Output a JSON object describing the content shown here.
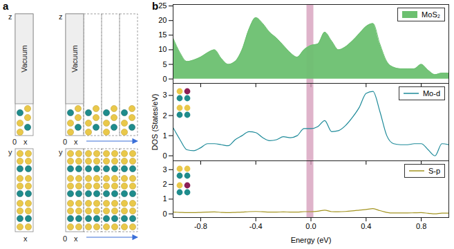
{
  "panel_labels": [
    "a",
    "b"
  ],
  "diagram": {
    "side_views": [
      {
        "vertical_axis": "z",
        "horizontal_axis": "x",
        "origin": "0",
        "region": "Vacuum"
      },
      {
        "vertical_axis": "z",
        "horizontal_axis": "x",
        "origin": "0",
        "region": "Vacuum"
      }
    ],
    "top_views": [
      {
        "vertical_axis": "y",
        "horizontal_axis": "x"
      },
      {
        "vertical_axis": "y",
        "horizontal_axis": "x",
        "origin": "0"
      }
    ]
  },
  "chart_data": [
    {
      "type": "line",
      "x": [
        -1.0,
        -0.95,
        -0.9,
        -0.85,
        -0.8,
        -0.75,
        -0.7,
        -0.65,
        -0.6,
        -0.55,
        -0.5,
        -0.45,
        -0.4,
        -0.35,
        -0.3,
        -0.25,
        -0.2,
        -0.15,
        -0.1,
        -0.05,
        0.0,
        0.05,
        0.1,
        0.15,
        0.2,
        0.25,
        0.3,
        0.35,
        0.4,
        0.45,
        0.5,
        0.55,
        0.6,
        0.65,
        0.7,
        0.75,
        0.8,
        0.85,
        0.9,
        0.95,
        1.0
      ],
      "series": [
        {
          "name": "MoS₂",
          "type": "area",
          "color": "#6cc070",
          "values": [
            14,
            9,
            6,
            6.5,
            7.5,
            9,
            10,
            7,
            5,
            6,
            10,
            17,
            21,
            19,
            16,
            14,
            11.5,
            9,
            7.5,
            10,
            11.5,
            12,
            16,
            13,
            10,
            11,
            13,
            15.5,
            18,
            19,
            12,
            6,
            4,
            3.5,
            3.5,
            3.5,
            5,
            3,
            1.5,
            2,
            2
          ]
        }
      ],
      "xlim": [
        -1.0,
        1.0
      ],
      "xticks": [
        -0.8,
        -0.4,
        {
          "value": 0,
          "label": "0.0"
        },
        0.4,
        0.8
      ],
      "ylim": [
        -1.5,
        25.5
      ],
      "yticks": [
        0,
        5,
        10,
        15,
        20,
        25
      ],
      "tick_labels": "y",
      "legend": "top-right",
      "shaded_range": {
        "x": [
          -0.03,
          0.02
        ],
        "color": "#d49ab8"
      }
    },
    {
      "type": "line",
      "ylabel": "DOS (States/eV)",
      "x": [
        -1.0,
        -0.95,
        -0.9,
        -0.85,
        -0.8,
        -0.75,
        -0.7,
        -0.65,
        -0.6,
        -0.55,
        -0.5,
        -0.45,
        -0.4,
        -0.35,
        -0.3,
        -0.25,
        -0.2,
        -0.15,
        -0.1,
        -0.05,
        0.0,
        0.05,
        0.1,
        0.15,
        0.2,
        0.25,
        0.3,
        0.35,
        0.4,
        0.45,
        0.5,
        0.55,
        0.6,
        0.65,
        0.7,
        0.75,
        0.8,
        0.85,
        0.9,
        0.95,
        1.0
      ],
      "series": [
        {
          "name": "Mo-d",
          "type": "line",
          "color": "#1d8a99",
          "values": [
            1.4,
            0.8,
            0.3,
            0.25,
            0.4,
            0.6,
            0.6,
            0.55,
            0.5,
            0.8,
            1.0,
            1.2,
            1.15,
            0.9,
            0.75,
            0.8,
            0.95,
            0.9,
            1.0,
            1.35,
            1.35,
            1.45,
            1.75,
            1.2,
            1.25,
            1.5,
            1.9,
            2.4,
            3.1,
            3.2,
            2.2,
            1.0,
            0.6,
            0.55,
            0.55,
            0.6,
            0.6,
            0.3,
            0.0,
            0.6,
            0.55
          ]
        }
      ],
      "xlim": [
        -1.0,
        1.0
      ],
      "xticks": [
        -0.8,
        -0.4,
        {
          "value": 0,
          "label": "0.0"
        },
        0.4,
        0.8
      ],
      "ylim": [
        -0.25,
        3.6
      ],
      "yticks": [
        0,
        1,
        2,
        3
      ],
      "tick_labels": "y",
      "legend": "top-right",
      "shaded_range": {
        "x": [
          -0.03,
          0.02
        ],
        "color": "#d49ab8"
      }
    },
    {
      "type": "line",
      "xlabel": "Energy (eV)",
      "x": [
        -1.0,
        -0.95,
        -0.9,
        -0.85,
        -0.8,
        -0.75,
        -0.7,
        -0.65,
        -0.6,
        -0.55,
        -0.5,
        -0.45,
        -0.4,
        -0.35,
        -0.3,
        -0.25,
        -0.2,
        -0.15,
        -0.1,
        -0.05,
        0.0,
        0.05,
        0.1,
        0.15,
        0.2,
        0.25,
        0.3,
        0.35,
        0.4,
        0.45,
        0.5,
        0.55,
        0.6,
        0.65,
        0.7,
        0.75,
        0.8,
        0.85,
        0.9,
        0.95,
        1.0
      ],
      "series": [
        {
          "name": "S-p",
          "type": "line",
          "color": "#a39420",
          "values": [
            0.12,
            0.1,
            0.08,
            0.08,
            0.1,
            0.12,
            0.13,
            0.1,
            0.08,
            0.1,
            0.12,
            0.15,
            0.16,
            0.14,
            0.12,
            0.12,
            0.13,
            0.12,
            0.12,
            0.15,
            0.15,
            0.18,
            0.25,
            0.15,
            0.14,
            0.16,
            0.2,
            0.25,
            0.3,
            0.35,
            0.22,
            0.1,
            0.06,
            0.06,
            0.06,
            0.07,
            0.08,
            0.04,
            0.0,
            0.05,
            0.05
          ]
        }
      ],
      "xlim": [
        -1.0,
        1.0
      ],
      "xticks": [
        -0.8,
        -0.4,
        {
          "value": 0,
          "label": "0.0"
        },
        0.4,
        0.8
      ],
      "ylim": [
        -0.25,
        3.6
      ],
      "yticks": [
        0,
        1,
        2,
        3
      ],
      "legend": "top-right",
      "shaded_range": {
        "x": [
          -0.03,
          0.02
        ],
        "color": "#d49ab8"
      }
    }
  ]
}
